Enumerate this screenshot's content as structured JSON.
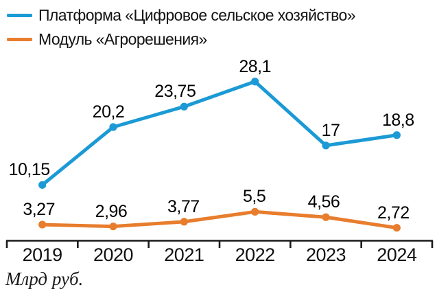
{
  "caption": "Млрд руб.",
  "legend": {
    "items": [
      {
        "label": "Платформа «Цифровое сельское хозяйство»",
        "color": "#1b9ad5"
      },
      {
        "label": "Модуль «Агрорешения»",
        "color": "#e87d2d"
      }
    ]
  },
  "chart_data": {
    "type": "line",
    "categories": [
      "2019",
      "2020",
      "2021",
      "2022",
      "2023",
      "2024"
    ],
    "series": [
      {
        "name": "Платформа «Цифровое сельское хозяйство»",
        "color": "#1b9ad5",
        "values": [
          10.15,
          20.2,
          23.75,
          28.1,
          17,
          18.8
        ],
        "value_labels": [
          "10,15",
          "20,2",
          "23,75",
          "28,1",
          "17",
          "18,8"
        ]
      },
      {
        "name": "Модуль «Агрорешения»",
        "color": "#e87d2d",
        "values": [
          3.27,
          2.96,
          3.77,
          5.5,
          4.56,
          2.72
        ],
        "value_labels": [
          "3,27",
          "2,96",
          "3,77",
          "5,5",
          "4,56",
          "2,72"
        ]
      }
    ],
    "title": "",
    "xlabel": "",
    "ylabel": "Млрд руб.",
    "ylim": [
      0,
      30
    ],
    "grid": false,
    "legend_position": "top-left",
    "markers": true,
    "decimal_separator": ","
  }
}
